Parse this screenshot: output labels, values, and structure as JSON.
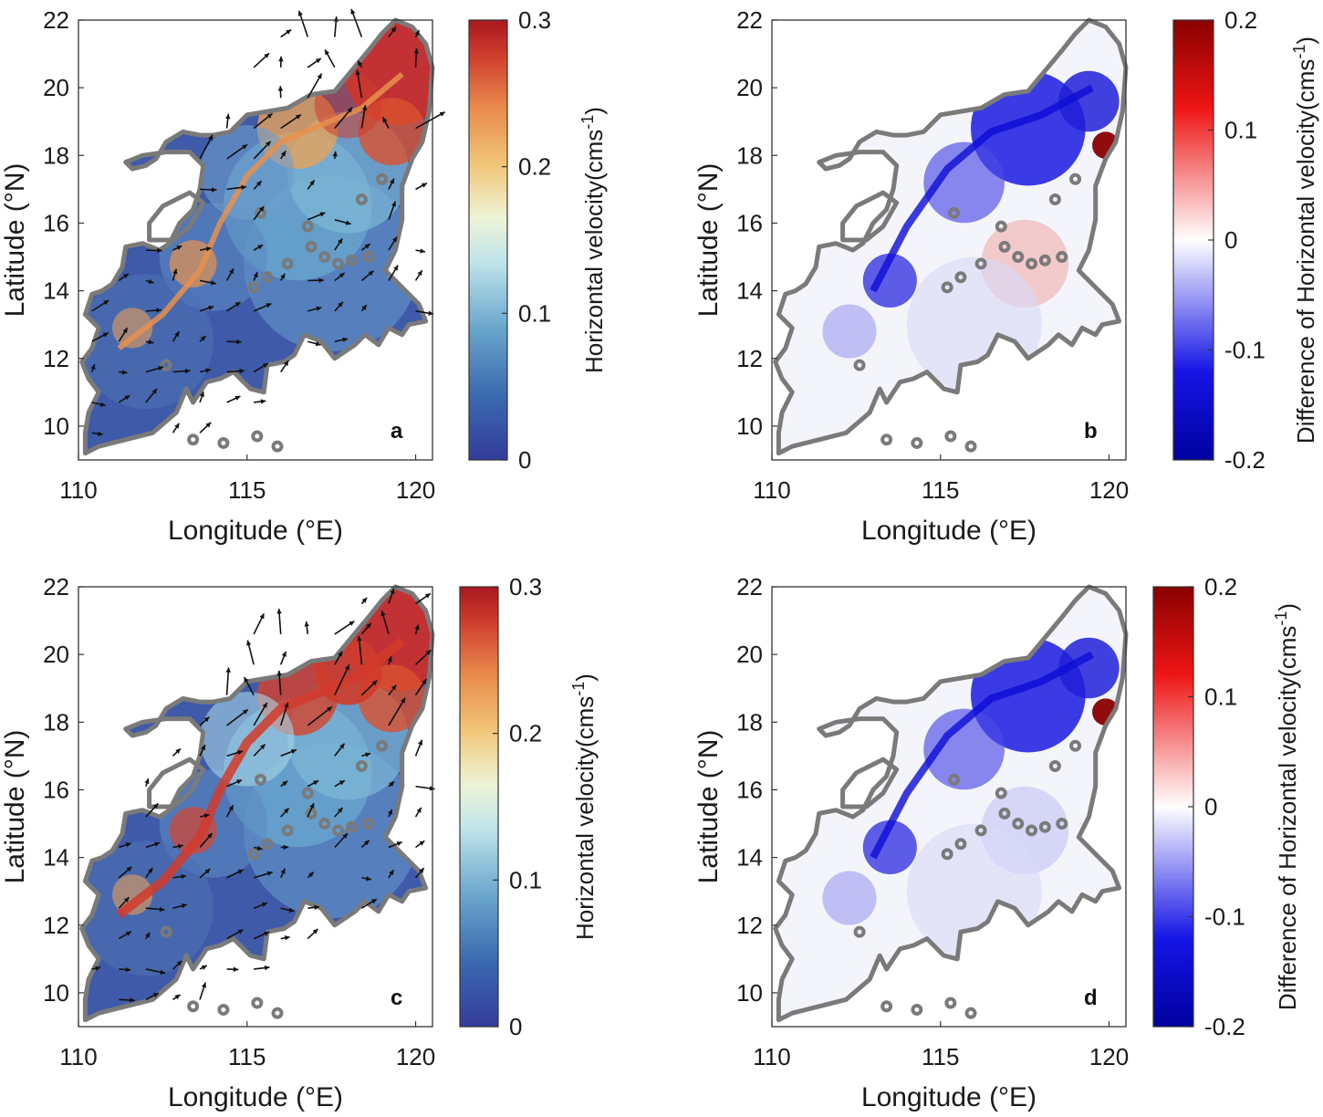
{
  "figure": {
    "panels": [
      {
        "id": "a",
        "letter": "a",
        "xlabel": "Longitude (°E)",
        "ylabel": "Latitude (°N)",
        "xticks": [
          "110",
          "115",
          "120"
        ],
        "yticks": [
          "10",
          "12",
          "14",
          "16",
          "18",
          "20",
          "22"
        ],
        "xlim": [
          110,
          120.5
        ],
        "ylim": [
          9,
          22
        ],
        "colormap": "parula-jet",
        "cbar_label": "Horizontal velocity(cms",
        "cbar_sup": "-1",
        "cbar_close": ")",
        "cbar_ticks": [
          "0",
          "0.1",
          "0.2",
          "0.3"
        ],
        "cbar_range": [
          0,
          0.3
        ],
        "arrows": true
      },
      {
        "id": "b",
        "letter": "b",
        "xlabel": "Longitude (°E)",
        "ylabel": "Latitude (°N)",
        "xticks": [
          "110",
          "115",
          "120"
        ],
        "yticks": [
          "10",
          "12",
          "14",
          "16",
          "18",
          "20",
          "22"
        ],
        "xlim": [
          110,
          120.5
        ],
        "ylim": [
          9,
          22
        ],
        "colormap": "blue-white-red",
        "cbar_label": "Difference of Horizontal velocity(cms",
        "cbar_sup": "-1",
        "cbar_close": ")",
        "cbar_ticks": [
          "-0.2",
          "-0.1",
          "0",
          "0.1",
          "0.2"
        ],
        "cbar_range": [
          -0.2,
          0.2
        ],
        "arrows": false
      },
      {
        "id": "c",
        "letter": "c",
        "xlabel": "Longitude (°E)",
        "ylabel": "Latitude (°N)",
        "xticks": [
          "110",
          "115",
          "120"
        ],
        "yticks": [
          "10",
          "12",
          "14",
          "16",
          "18",
          "20",
          "22"
        ],
        "xlim": [
          110,
          120.5
        ],
        "ylim": [
          9,
          22
        ],
        "colormap": "parula-jet",
        "cbar_label": "Horizontal velocity(cms",
        "cbar_sup": "-1",
        "cbar_close": ")",
        "cbar_ticks": [
          "0",
          "0.1",
          "0.2",
          "0.3"
        ],
        "cbar_range": [
          0,
          0.3
        ],
        "arrows": true
      },
      {
        "id": "d",
        "letter": "d",
        "xlabel": "Longitude (°E)",
        "ylabel": "Latitude (°N)",
        "xticks": [
          "110",
          "115",
          "120"
        ],
        "yticks": [
          "10",
          "12",
          "14",
          "16",
          "18",
          "20",
          "22"
        ],
        "xlim": [
          110,
          120.5
        ],
        "ylim": [
          9,
          22
        ],
        "colormap": "blue-white-red",
        "cbar_label": "Difference of Horizontal velocity(cms",
        "cbar_sup": "-1",
        "cbar_close": ")",
        "cbar_ticks": [
          "-0.2",
          "-0.1",
          "0",
          "0.1",
          "0.2"
        ],
        "cbar_range": [
          -0.2,
          0.2
        ],
        "arrows": false
      }
    ]
  },
  "colors": {
    "coastline": "#7a7a7a",
    "velocity_low": "#3a3f9e",
    "velocity_mid": "#b9e3e8",
    "velocity_high": "#b5272a",
    "diff_neg": "#1010d0",
    "diff_zero": "#ffffff",
    "diff_pos": "#a00000"
  }
}
